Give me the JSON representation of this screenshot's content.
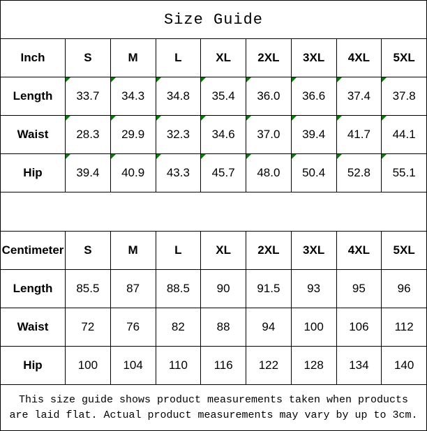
{
  "title": "Size Guide",
  "colors": {
    "table_border": "#000000",
    "flag_green": "#008000",
    "background": "#ffffff",
    "text": "#000000"
  },
  "sizes": [
    "S",
    "M",
    "L",
    "XL",
    "2XL",
    "3XL",
    "4XL",
    "5XL"
  ],
  "tables": [
    {
      "unit": "Inch",
      "corner_flags": true,
      "rows": [
        {
          "label": "Length",
          "values": [
            "33.7",
            "34.3",
            "34.8",
            "35.4",
            "36.0",
            "36.6",
            "37.4",
            "37.8"
          ]
        },
        {
          "label": "Waist",
          "values": [
            "28.3",
            "29.9",
            "32.3",
            "34.6",
            "37.0",
            "39.4",
            "41.7",
            "44.1"
          ]
        },
        {
          "label": "Hip",
          "values": [
            "39.4",
            "40.9",
            "43.3",
            "45.7",
            "48.0",
            "50.4",
            "52.8",
            "55.1"
          ]
        }
      ]
    },
    {
      "unit": "Centimeter",
      "corner_flags": false,
      "rows": [
        {
          "label": "Length",
          "values": [
            "85.5",
            "87",
            "88.5",
            "90",
            "91.5",
            "93",
            "95",
            "96"
          ]
        },
        {
          "label": "Waist",
          "values": [
            "72",
            "76",
            "82",
            "88",
            "94",
            "100",
            "106",
            "112"
          ]
        },
        {
          "label": "Hip",
          "values": [
            "100",
            "104",
            "110",
            "116",
            "122",
            "128",
            "134",
            "140"
          ]
        }
      ]
    }
  ],
  "footer_lines": [
    "This size guide shows product measurements taken when products",
    "are laid flat. Actual product measurements may vary by up to 3cm."
  ]
}
